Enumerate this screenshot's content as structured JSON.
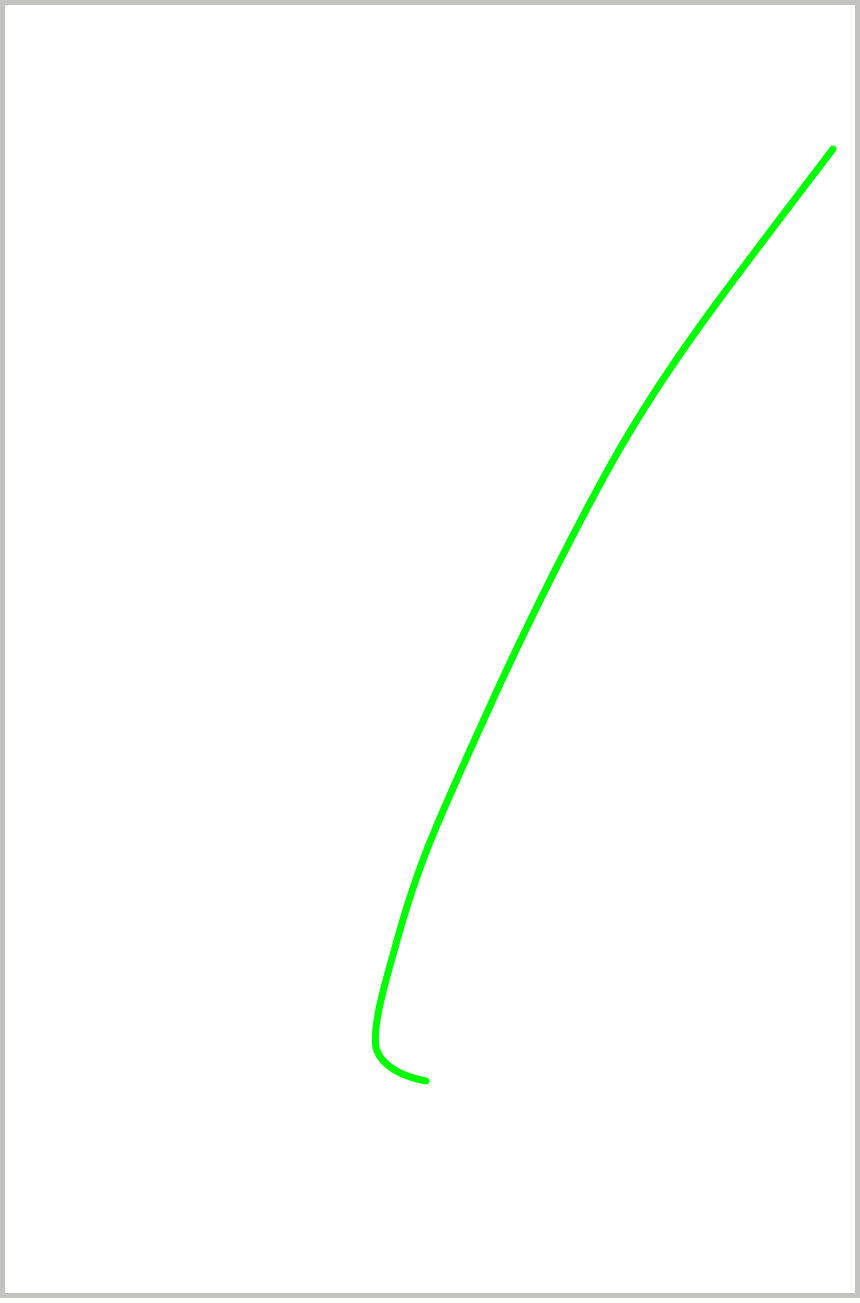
{
  "canvas": {
    "background_color": "#ffffff",
    "border_color": "#c3c3bf",
    "stroke": {
      "color": "#00ff00",
      "tool": "pen"
    }
  }
}
